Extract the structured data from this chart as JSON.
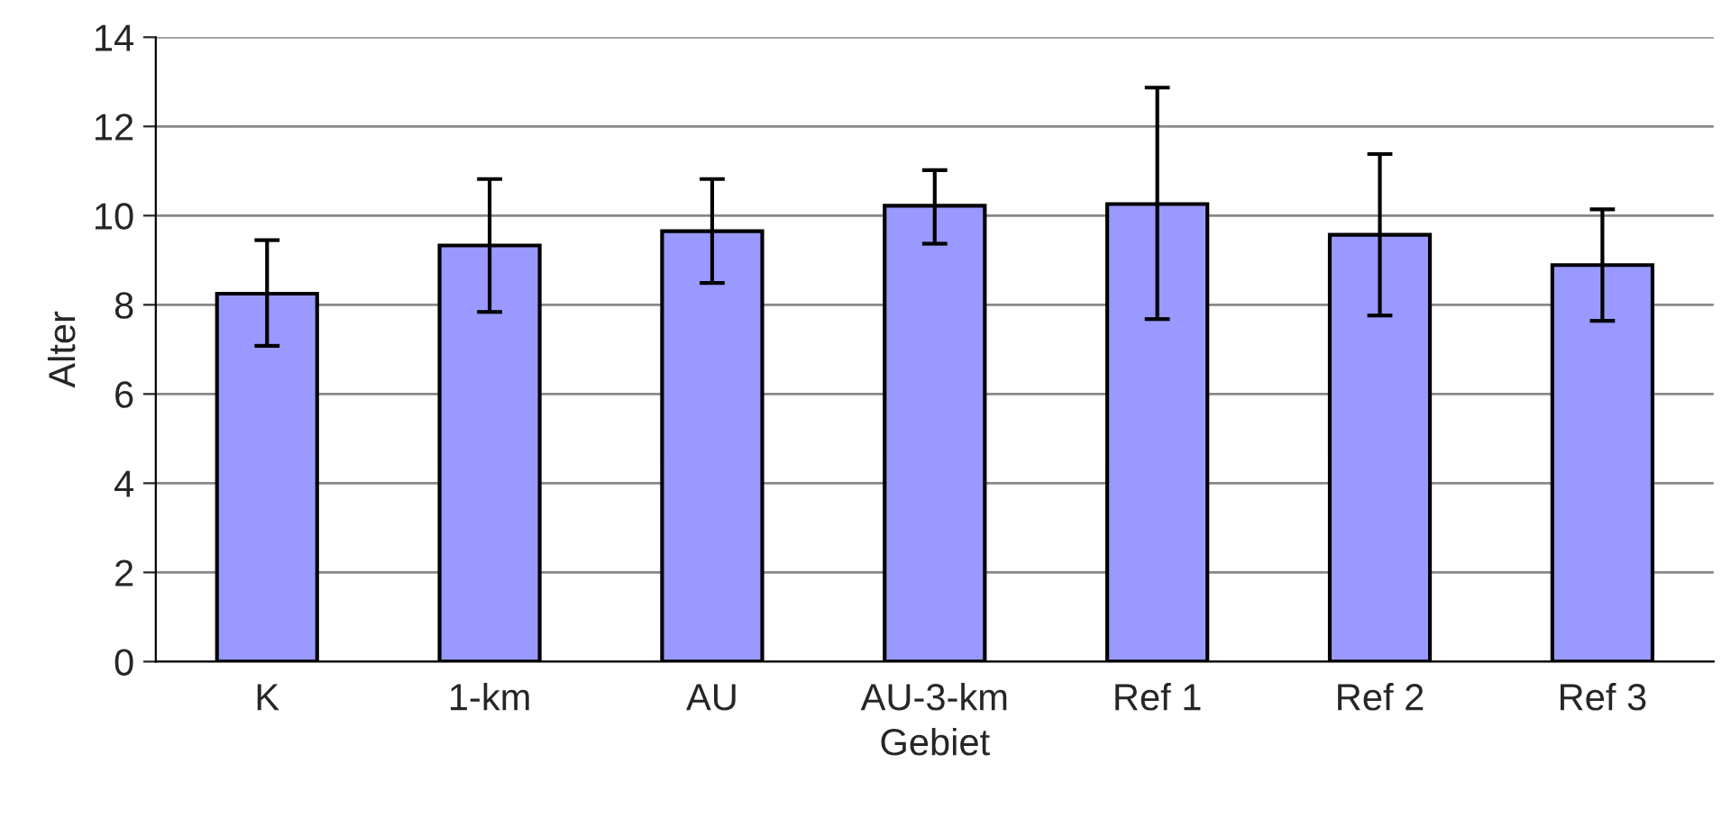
{
  "chart_data": {
    "type": "bar",
    "xlabel": "Gebiet",
    "ylabel": "Alter",
    "categories": [
      "K",
      "1-km",
      "AU",
      "AU-3-km",
      "Ref 1",
      "Ref 2",
      "Ref 3"
    ],
    "values": [
      8.25,
      9.33,
      9.65,
      10.22,
      10.26,
      9.57,
      8.89
    ],
    "errors": [
      [
        7.08,
        9.45
      ],
      [
        7.84,
        10.82
      ],
      [
        8.49,
        10.82
      ],
      [
        9.37,
        11.02
      ],
      [
        7.68,
        12.87
      ],
      [
        7.76,
        11.38
      ],
      [
        7.64,
        10.14
      ]
    ],
    "color": "#9999ff",
    "ylim": [
      0,
      14
    ],
    "yticks": [
      0,
      2,
      4,
      6,
      8,
      10,
      12,
      14
    ],
    "grid": "y",
    "legend": false
  }
}
